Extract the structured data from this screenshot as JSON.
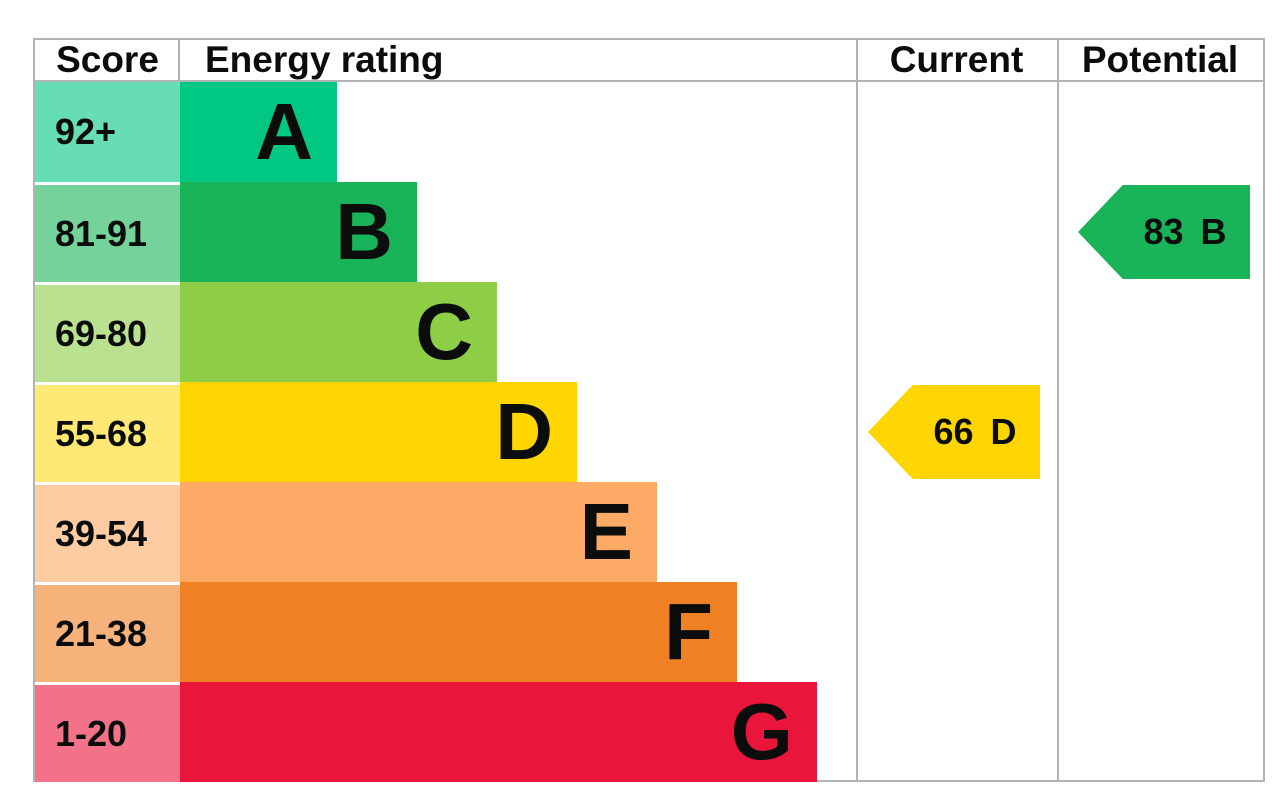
{
  "chart_data": {
    "type": "epc_energy_rating_bar",
    "columns": [
      "Score",
      "Energy rating",
      "Current",
      "Potential"
    ],
    "bands": [
      {
        "range": "92+",
        "letter": "A",
        "bar_color": "#00c781",
        "score_color": "#66ddb3"
      },
      {
        "range": "81-91",
        "letter": "B",
        "bar_color": "#19b459",
        "score_color": "#75d29b"
      },
      {
        "range": "69-80",
        "letter": "C",
        "bar_color": "#8dce46",
        "score_color": "#bae190"
      },
      {
        "range": "55-68",
        "letter": "D",
        "bar_color": "#ffd500",
        "score_color": "#ffe873"
      },
      {
        "range": "39-54",
        "letter": "E",
        "bar_color": "#fcaa65",
        "score_color": "#fdcca2"
      },
      {
        "range": "21-38",
        "letter": "F",
        "bar_color": "#ef8023",
        "score_color": "#f5b27b"
      },
      {
        "range": "1-20",
        "letter": "G",
        "bar_color": "#e9153b",
        "score_color": "#f27389"
      }
    ],
    "current": {
      "score": "66",
      "letter": "D",
      "color": "#ffd500"
    },
    "potential": {
      "score": "83",
      "letter": "B",
      "color": "#19b459"
    },
    "layout_hints": {
      "border_color": "#b1b4b6",
      "text_color": "#0b0c0c",
      "bar_min_width": 157,
      "bar_step": 80
    }
  }
}
